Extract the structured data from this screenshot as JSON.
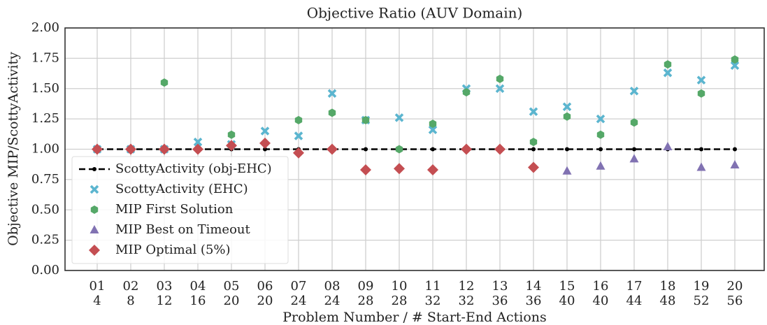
{
  "chart_data": {
    "type": "scatter",
    "title": "Objective Ratio (AUV Domain)",
    "xlabel": "Problem Number / # Start-End Actions",
    "ylabel": "Objective MIP/ScottyActivity",
    "categories": [
      [
        "01",
        "4"
      ],
      [
        "02",
        "8"
      ],
      [
        "03",
        "12"
      ],
      [
        "04",
        "16"
      ],
      [
        "05",
        "20"
      ],
      [
        "06",
        "20"
      ],
      [
        "07",
        "24"
      ],
      [
        "08",
        "24"
      ],
      [
        "09",
        "28"
      ],
      [
        "10",
        "28"
      ],
      [
        "11",
        "32"
      ],
      [
        "12",
        "32"
      ],
      [
        "13",
        "36"
      ],
      [
        "14",
        "36"
      ],
      [
        "15",
        "40"
      ],
      [
        "16",
        "40"
      ],
      [
        "17",
        "44"
      ],
      [
        "18",
        "48"
      ],
      [
        "19",
        "52"
      ],
      [
        "20",
        "56"
      ]
    ],
    "ylim": [
      0,
      2
    ],
    "yticks": [
      {
        "value": 0,
        "label": "0.00"
      },
      {
        "value": 0.25,
        "label": "0.25"
      },
      {
        "value": 0.5,
        "label": "0.50"
      },
      {
        "value": 0.75,
        "label": "0.75"
      },
      {
        "value": 1,
        "label": "1.00"
      },
      {
        "value": 1.25,
        "label": "1.25"
      },
      {
        "value": 1.5,
        "label": "1.50"
      },
      {
        "value": 1.75,
        "label": "1.75"
      },
      {
        "value": 2,
        "label": "2.00"
      }
    ],
    "grid": true,
    "legend": "lower left",
    "series": [
      {
        "name": "ScottyActivity (obj-EHC)",
        "color": "#000000",
        "marker": "dot",
        "line": "dashed",
        "values": [
          1,
          1,
          1,
          1,
          1,
          1,
          1,
          1,
          1,
          1,
          1,
          1,
          1,
          1,
          1,
          1,
          1,
          1,
          1,
          1
        ]
      },
      {
        "name": "ScottyActivity (EHC)",
        "color": "#5bb5cf",
        "marker": "x",
        "values": [
          1.0,
          1.0,
          1.0,
          1.06,
          1.04,
          1.15,
          1.11,
          1.46,
          1.24,
          1.26,
          1.16,
          1.5,
          1.5,
          1.31,
          1.35,
          1.25,
          1.48,
          1.63,
          1.57,
          1.69
        ]
      },
      {
        "name": "MIP First Solution",
        "color": "#55a868",
        "marker": "hexagon",
        "values": [
          1.0,
          1.0,
          1.55,
          null,
          1.12,
          null,
          1.24,
          1.3,
          1.24,
          1.0,
          1.21,
          1.47,
          1.58,
          1.06,
          1.27,
          1.12,
          1.22,
          1.7,
          1.46,
          1.74
        ]
      },
      {
        "name": "MIP Best on Timeout",
        "color": "#8172b2",
        "marker": "triangle",
        "values": [
          null,
          null,
          null,
          null,
          null,
          null,
          null,
          null,
          null,
          null,
          null,
          null,
          null,
          null,
          0.82,
          0.86,
          0.92,
          1.02,
          0.85,
          0.87
        ]
      },
      {
        "name": "MIP Optimal (5%)",
        "color": "#c44e52",
        "marker": "diamond",
        "values": [
          1.0,
          1.0,
          1.0,
          1.0,
          1.03,
          1.05,
          0.97,
          1.0,
          0.83,
          0.84,
          0.83,
          1.0,
          1.0,
          0.85,
          null,
          null,
          null,
          null,
          null,
          null
        ]
      }
    ]
  }
}
